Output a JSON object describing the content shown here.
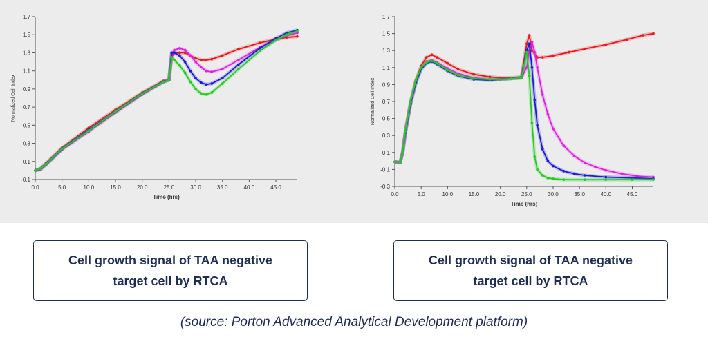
{
  "chart_data": [
    {
      "type": "line",
      "title": "",
      "xlabel": "Time (hrs)",
      "ylabel": "Normalized Cell Index",
      "xlim": [
        0,
        49
      ],
      "ylim": [
        -0.1,
        1.7
      ],
      "xticks": [
        "0.0",
        "5.0",
        "10.0",
        "15.0",
        "20.0",
        "25.0",
        "30.0",
        "35.0",
        "40.0",
        "45.0"
      ],
      "yticks": [
        "-0.1",
        "0.1",
        "0.3",
        "0.5",
        "0.7",
        "0.9",
        "1.1",
        "1.3",
        "1.5",
        "1.7"
      ],
      "grid": false,
      "series": [
        {
          "color": "#e8191c",
          "x": [
            0,
            1,
            2,
            5,
            10,
            15,
            20,
            24,
            25,
            25.5,
            26,
            27,
            28,
            29,
            30,
            31,
            32,
            33,
            35,
            38,
            42,
            45,
            47,
            49
          ],
          "y": [
            0.0,
            0.02,
            0.08,
            0.25,
            0.47,
            0.67,
            0.86,
            0.99,
            1.0,
            1.25,
            1.3,
            1.3,
            1.3,
            1.27,
            1.24,
            1.22,
            1.22,
            1.23,
            1.27,
            1.34,
            1.41,
            1.45,
            1.47,
            1.48
          ]
        },
        {
          "color": "#e020e0",
          "x": [
            0,
            1,
            2,
            5,
            10,
            15,
            20,
            24,
            25,
            25.5,
            26,
            27,
            28,
            29,
            30,
            31,
            32,
            33,
            35,
            38,
            42,
            45,
            47,
            49
          ],
          "y": [
            0.0,
            0.01,
            0.06,
            0.23,
            0.43,
            0.64,
            0.84,
            0.98,
            1.0,
            1.28,
            1.33,
            1.35,
            1.33,
            1.27,
            1.2,
            1.14,
            1.1,
            1.09,
            1.12,
            1.22,
            1.36,
            1.44,
            1.49,
            1.52
          ]
        },
        {
          "color": "#1a1ad8",
          "x": [
            0,
            1,
            2,
            5,
            10,
            15,
            20,
            24,
            25,
            25.5,
            26,
            27,
            28,
            29,
            30,
            31,
            32,
            33,
            35,
            38,
            42,
            45,
            47,
            49
          ],
          "y": [
            0.0,
            0.02,
            0.07,
            0.24,
            0.45,
            0.65,
            0.85,
            0.98,
            1.0,
            1.3,
            1.3,
            1.27,
            1.2,
            1.1,
            1.02,
            0.97,
            0.95,
            0.96,
            1.02,
            1.17,
            1.35,
            1.46,
            1.52,
            1.55
          ]
        },
        {
          "color": "#22cc22",
          "x": [
            0,
            1,
            2,
            5,
            10,
            15,
            20,
            24,
            25,
            25.5,
            26,
            27,
            28,
            29,
            30,
            31,
            32,
            33,
            35,
            38,
            42,
            45,
            47,
            49
          ],
          "y": [
            0.0,
            0.02,
            0.07,
            0.24,
            0.44,
            0.65,
            0.85,
            0.98,
            1.0,
            1.25,
            1.22,
            1.16,
            1.08,
            0.98,
            0.9,
            0.85,
            0.84,
            0.86,
            0.96,
            1.12,
            1.32,
            1.44,
            1.5,
            1.54
          ]
        }
      ]
    },
    {
      "type": "line",
      "title": "",
      "xlabel": "Time (hrs)",
      "ylabel": "Normalized Cell Index",
      "xlim": [
        0,
        49
      ],
      "ylim": [
        -0.3,
        1.7
      ],
      "xticks": [
        "0.0",
        "5.0",
        "10.0",
        "15.0",
        "20.0",
        "25.0",
        "30.0",
        "35.0",
        "40.0",
        "45.0"
      ],
      "yticks": [
        "-0.3",
        "-0.1",
        "0.1",
        "0.3",
        "0.5",
        "0.7",
        "0.9",
        "1.1",
        "1.3",
        "1.5",
        "1.7"
      ],
      "grid": false,
      "series": [
        {
          "color": "#e8191c",
          "x": [
            0,
            1,
            1.5,
            2,
            3,
            4,
            5,
            6,
            7,
            8,
            10,
            12,
            15,
            18,
            20,
            22,
            24,
            25,
            25.5,
            26,
            27,
            28,
            30,
            33,
            36,
            40,
            44,
            47,
            49
          ],
          "y": [
            -0.01,
            -0.02,
            0.1,
            0.35,
            0.7,
            0.95,
            1.12,
            1.22,
            1.25,
            1.22,
            1.15,
            1.08,
            1.02,
            0.99,
            0.98,
            0.98,
            0.99,
            1.38,
            1.48,
            1.3,
            1.22,
            1.22,
            1.24,
            1.28,
            1.32,
            1.37,
            1.43,
            1.48,
            1.5
          ]
        },
        {
          "color": "#e020e0",
          "x": [
            0,
            1,
            1.5,
            2,
            3,
            4,
            5,
            6,
            7,
            8,
            10,
            12,
            15,
            18,
            20,
            22,
            24,
            25,
            25.5,
            26,
            26.5,
            27,
            28,
            29,
            30,
            32,
            34,
            36,
            38,
            40,
            43,
            46,
            49
          ],
          "y": [
            -0.01,
            -0.02,
            0.1,
            0.33,
            0.68,
            0.93,
            1.09,
            1.17,
            1.19,
            1.16,
            1.09,
            1.03,
            0.98,
            0.96,
            0.96,
            0.97,
            0.98,
            1.1,
            1.3,
            1.4,
            1.28,
            1.1,
            0.78,
            0.55,
            0.38,
            0.18,
            0.06,
            -0.02,
            -0.07,
            -0.11,
            -0.15,
            -0.18,
            -0.19
          ]
        },
        {
          "color": "#1a1ad8",
          "x": [
            0,
            1,
            1.5,
            2,
            3,
            4,
            5,
            6,
            7,
            8,
            10,
            12,
            15,
            18,
            20,
            22,
            24,
            25,
            25.5,
            26,
            26.5,
            27,
            28,
            29,
            30,
            32,
            34,
            36,
            40,
            45,
            49
          ],
          "y": [
            -0.01,
            -0.02,
            0.1,
            0.33,
            0.67,
            0.92,
            1.08,
            1.15,
            1.17,
            1.14,
            1.06,
            1.0,
            0.96,
            0.95,
            0.96,
            0.97,
            0.98,
            1.3,
            1.38,
            1.1,
            0.72,
            0.42,
            0.14,
            0.0,
            -0.06,
            -0.12,
            -0.15,
            -0.17,
            -0.19,
            -0.2,
            -0.21
          ]
        },
        {
          "color": "#22cc22",
          "x": [
            0,
            1,
            1.5,
            2,
            3,
            4,
            5,
            6,
            7,
            8,
            10,
            12,
            15,
            18,
            20,
            22,
            24,
            25,
            25.5,
            26,
            26.5,
            27,
            28,
            29,
            30,
            32,
            36,
            40,
            45,
            49
          ],
          "y": [
            -0.01,
            -0.02,
            0.1,
            0.35,
            0.7,
            0.95,
            1.1,
            1.16,
            1.18,
            1.15,
            1.07,
            1.01,
            0.97,
            0.96,
            0.96,
            0.97,
            0.98,
            1.28,
            1.0,
            0.45,
            0.05,
            -0.1,
            -0.17,
            -0.2,
            -0.21,
            -0.22,
            -0.22,
            -0.22,
            -0.22,
            -0.22
          ]
        }
      ]
    }
  ],
  "captions": {
    "left": "Cell growth signal of TAA negative target cell by RTCA",
    "right": "Cell growth signal of TAA negative target cell by RTCA"
  },
  "source": "(source: Porton Advanced Analytical Development platform)"
}
